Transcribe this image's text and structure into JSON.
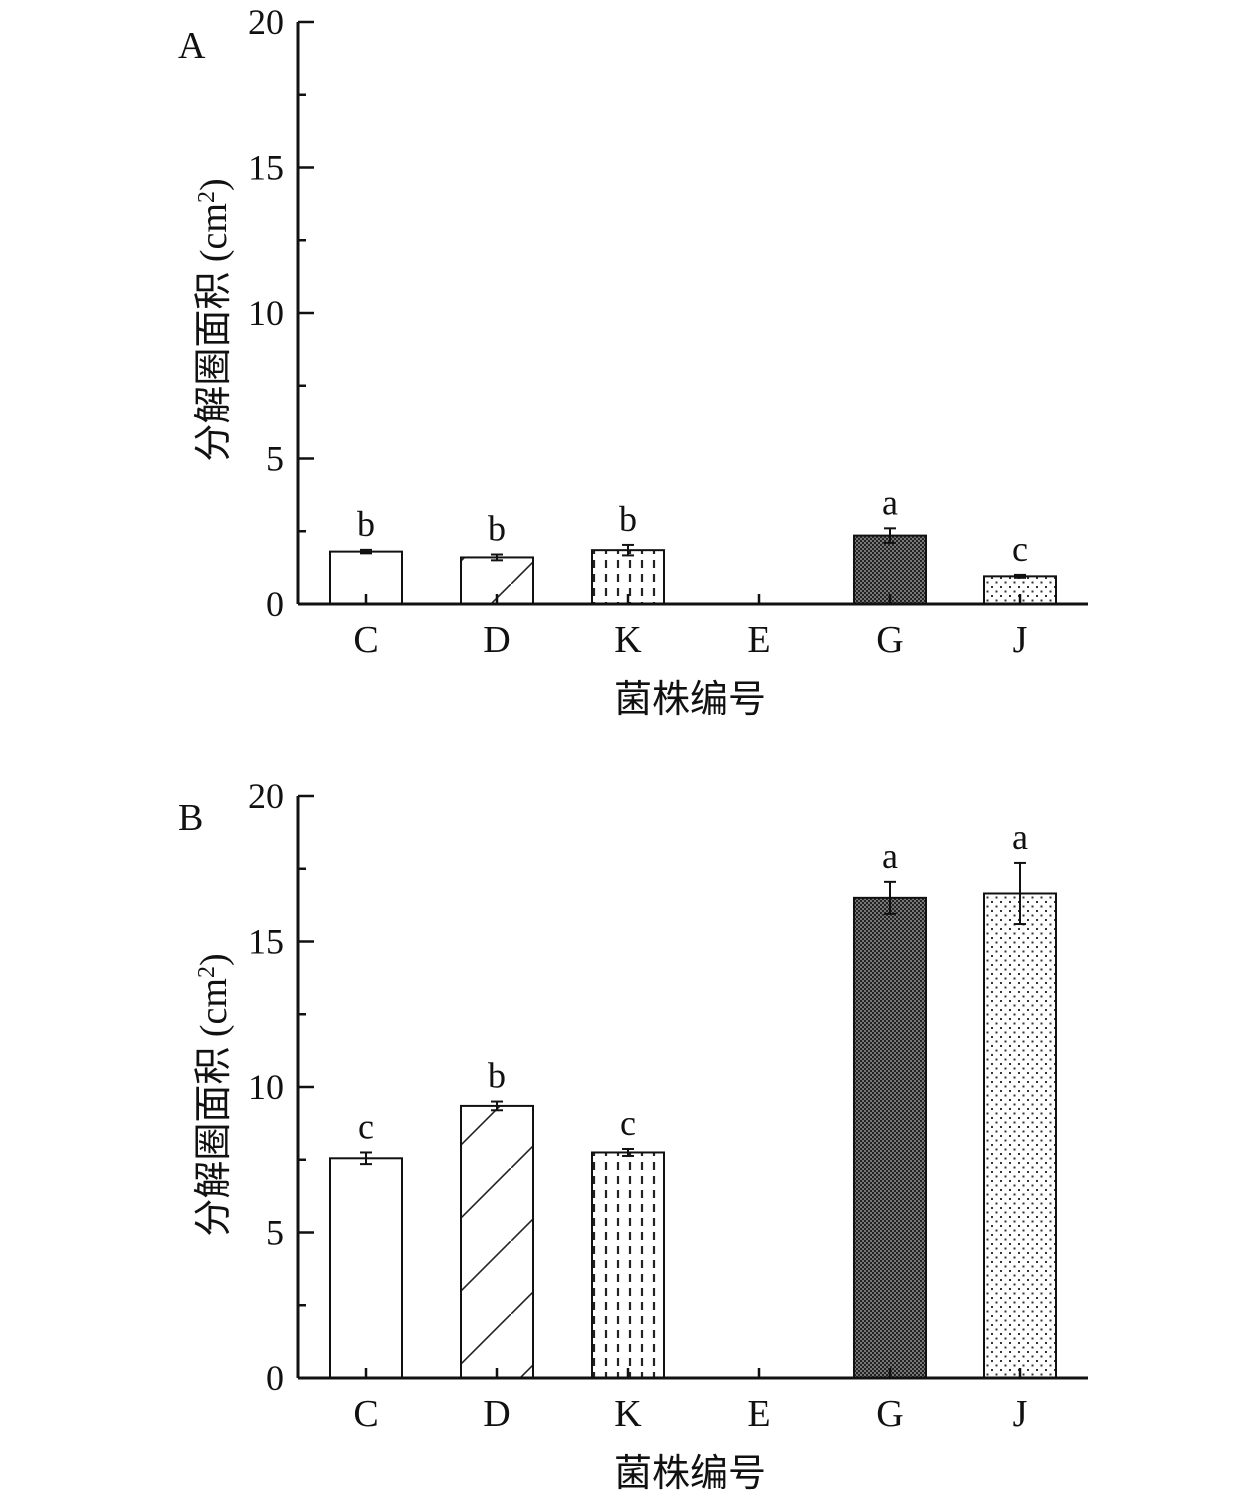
{
  "chart_data": [
    {
      "type": "bar",
      "panel_label": "A",
      "categories": [
        "C",
        "D",
        "K",
        "E",
        "G",
        "J"
      ],
      "values": [
        1.8,
        1.6,
        1.85,
        0,
        2.35,
        0.95
      ],
      "errors": [
        0.06,
        0.1,
        0.18,
        0,
        0.25,
        0.05
      ],
      "significance": [
        "b",
        "b",
        "b",
        "",
        "a",
        "c"
      ],
      "patterns": [
        "none",
        "diagonal",
        "dashed-vertical",
        "none",
        "dense-cross",
        "sparse-dots"
      ],
      "xlabel": "菌株编号",
      "ylabel": "分解圈面积 (cm",
      "ylabel_sup": "2",
      "ylabel_close": ")",
      "ylim": [
        0,
        20
      ],
      "yticks": [
        0,
        5,
        10,
        15,
        20
      ],
      "grid": false
    },
    {
      "type": "bar",
      "panel_label": "B",
      "categories": [
        "C",
        "D",
        "K",
        "E",
        "G",
        "J"
      ],
      "values": [
        7.55,
        9.35,
        7.75,
        0,
        16.5,
        16.65
      ],
      "errors": [
        0.2,
        0.15,
        0.12,
        0,
        0.55,
        1.05
      ],
      "significance": [
        "c",
        "b",
        "c",
        "",
        "a",
        "a"
      ],
      "patterns": [
        "none",
        "diagonal",
        "dashed-vertical",
        "none",
        "dense-cross",
        "sparse-dots"
      ],
      "xlabel": "菌株编号",
      "ylabel": "分解圈面积 (cm",
      "ylabel_sup": "2",
      "ylabel_close": ")",
      "ylim": [
        0,
        20
      ],
      "yticks": [
        0,
        5,
        10,
        15,
        20
      ],
      "grid": false
    }
  ]
}
